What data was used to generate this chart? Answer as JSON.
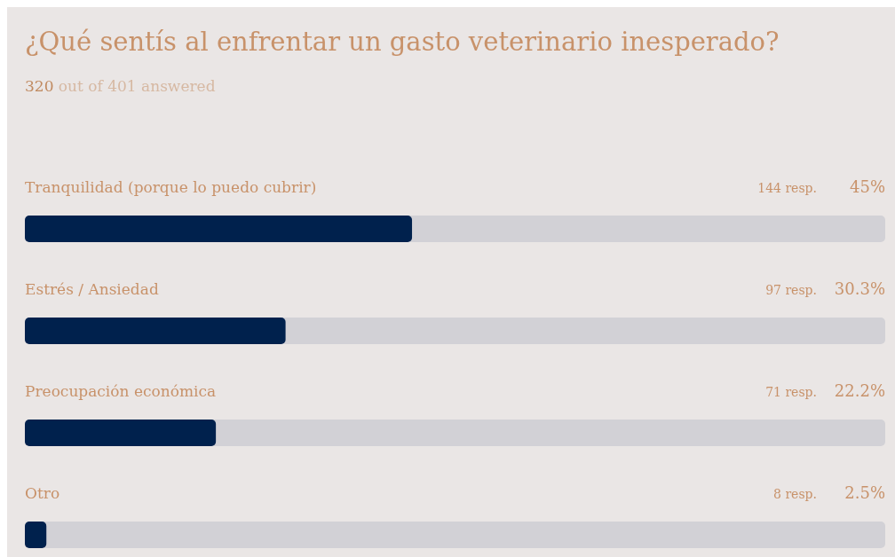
{
  "chart_data": {
    "type": "bar",
    "orientation": "horizontal",
    "title": "¿Qué sentís al enfrentar un gasto veterinario inesperado?",
    "subtitle": "320 out of 401 answered",
    "categories": [
      "Tranquilidad (porque lo puedo cubrir)",
      "Estrés / Ansiedad",
      "Preocupación económica",
      "Otro"
    ],
    "values": [
      45,
      30.3,
      22.2,
      2.5
    ],
    "value_labels": [
      "45%",
      "30.3%",
      "22.2%",
      "2.5%"
    ],
    "annotations": [
      "144 resp.",
      "97 resp.",
      "71 resp.",
      "8 resp."
    ],
    "color": "#00214d",
    "xlim": [
      0,
      100
    ]
  }
}
